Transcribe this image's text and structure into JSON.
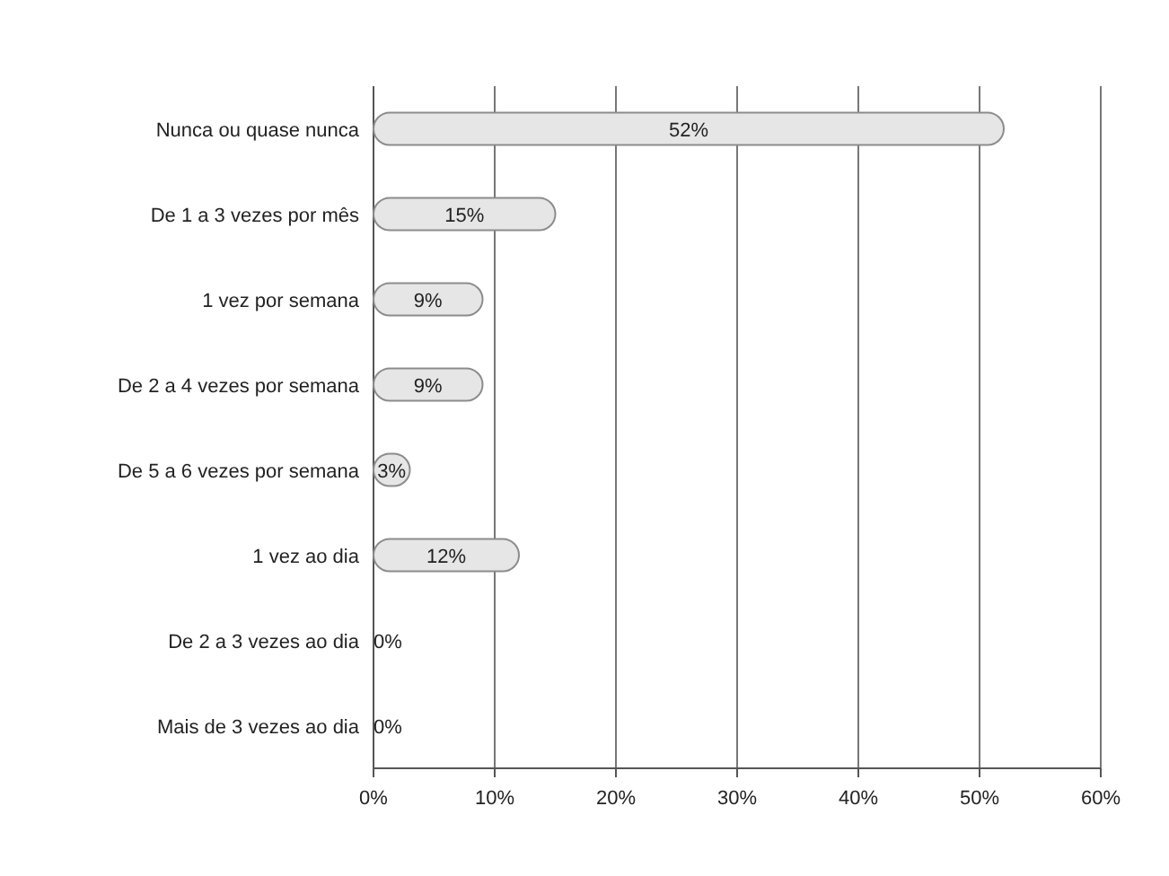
{
  "chart_data": {
    "type": "bar",
    "orientation": "horizontal",
    "categories": [
      "Nunca ou quase nunca",
      "De 1 a 3 vezes por mês",
      "1 vez por semana",
      "De 2 a 4 vezes por semana",
      "De 5 a 6 vezes por semana",
      "1 vez ao dia",
      "De 2 a 3 vezes ao dia",
      "Mais de 3 vezes ao dia"
    ],
    "values": [
      52,
      15,
      9,
      9,
      3,
      12,
      0,
      0
    ],
    "value_labels": [
      "52%",
      "15%",
      "9%",
      "9%",
      "3%",
      "12%",
      "0%",
      "0%"
    ],
    "color": "#e6e6e6",
    "xlim": [
      0,
      60
    ],
    "xticks": [
      {
        "value": 0,
        "label": "0%"
      },
      {
        "value": 10,
        "label": "10%"
      },
      {
        "value": 20,
        "label": "20%"
      },
      {
        "value": 30,
        "label": "30%"
      },
      {
        "value": 40,
        "label": "40%"
      },
      {
        "value": 50,
        "label": "50%"
      },
      {
        "value": 60,
        "label": "60%"
      }
    ],
    "grid": "x"
  }
}
